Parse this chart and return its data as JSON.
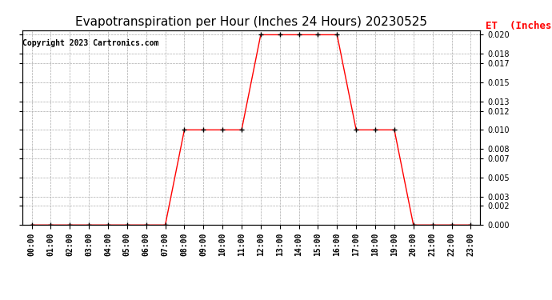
{
  "title": "Evapotranspiration per Hour (Inches 24 Hours) 20230525",
  "copyright": "Copyright 2023 Cartronics.com",
  "legend_label": "ET  (Inches)",
  "hours": [
    0,
    1,
    2,
    3,
    4,
    5,
    6,
    7,
    8,
    9,
    10,
    11,
    12,
    13,
    14,
    15,
    16,
    17,
    18,
    19,
    20,
    21,
    22,
    23
  ],
  "et_values": [
    0.0,
    0.0,
    0.0,
    0.0,
    0.0,
    0.0,
    0.0,
    0.0,
    0.01,
    0.01,
    0.01,
    0.01,
    0.02,
    0.02,
    0.02,
    0.02,
    0.02,
    0.01,
    0.01,
    0.01,
    0.0,
    0.0,
    0.0,
    0.0
  ],
  "line_color": "red",
  "marker": "+",
  "marker_color": "black",
  "marker_size": 4,
  "ylim": [
    0.0,
    0.0205
  ],
  "yticks": [
    0.0,
    0.002,
    0.003,
    0.005,
    0.007,
    0.008,
    0.01,
    0.012,
    0.013,
    0.015,
    0.017,
    0.018,
    0.02
  ],
  "background_color": "#ffffff",
  "grid_color": "#aaaaaa",
  "title_fontsize": 11,
  "copyright_fontsize": 7,
  "legend_fontsize": 9,
  "tick_fontsize": 7
}
